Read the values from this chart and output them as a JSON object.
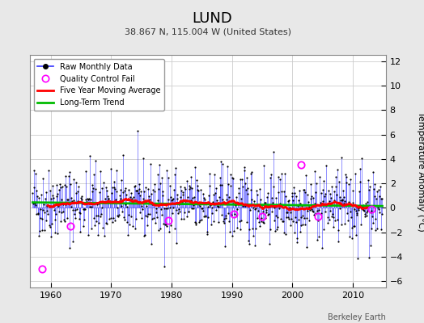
{
  "title": "LUND",
  "subtitle": "38.867 N, 115.004 W (United States)",
  "ylabel": "Temperature Anomaly (°C)",
  "credit": "Berkeley Earth",
  "xlim": [
    1956.5,
    2015.5
  ],
  "ylim": [
    -6.5,
    12.5
  ],
  "yticks": [
    -6,
    -4,
    -2,
    0,
    2,
    4,
    6,
    8,
    10,
    12
  ],
  "xticks": [
    1960,
    1970,
    1980,
    1990,
    2000,
    2010
  ],
  "bg_color": "#e8e8e8",
  "plot_bg": "#ffffff",
  "raw_color": "#3333ff",
  "qc_color": "#ff00ff",
  "moving_avg_color": "#ff0000",
  "trend_color": "#00bb00",
  "seed": 42,
  "start_year": 1957,
  "end_year": 2014,
  "trend_val": 0.4,
  "noise_scale": 1.5
}
